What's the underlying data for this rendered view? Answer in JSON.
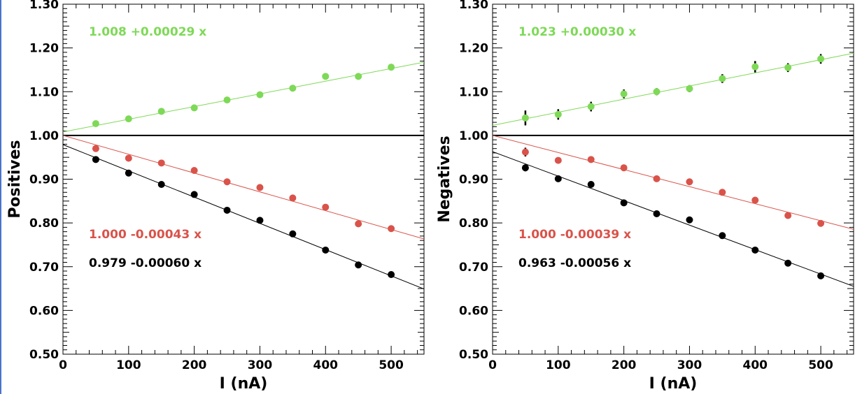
{
  "chart_data": [
    {
      "type": "scatter",
      "title": "",
      "xlabel": "I (nA)",
      "ylabel": "Positives",
      "xlim": [
        0,
        550
      ],
      "ylim": [
        0.5,
        1.3
      ],
      "x_ticks": [
        "0",
        "100",
        "200",
        "300",
        "400",
        "500"
      ],
      "y_ticks": [
        "0.50",
        "0.60",
        "0.70",
        "0.80",
        "0.90",
        "1.00",
        "1.10",
        "1.20",
        "1.30"
      ],
      "reference_line": 1.0,
      "grid": false,
      "series": [
        {
          "color": "#7ed957",
          "x": [
            50,
            100,
            150,
            200,
            250,
            300,
            350,
            400,
            450,
            500
          ],
          "y": [
            1.027,
            1.038,
            1.055,
            1.063,
            1.081,
            1.093,
            1.108,
            1.135,
            1.135,
            1.156
          ],
          "yerr": [
            0,
            0,
            0,
            0,
            0,
            0,
            0,
            0,
            0,
            0
          ],
          "fit": {
            "intercept": 1.008,
            "slope": 0.00029,
            "label": "1.008 +0.00029 x"
          }
        },
        {
          "color": "#d9534a",
          "x": [
            50,
            100,
            150,
            200,
            250,
            300,
            350,
            400,
            450,
            500
          ],
          "y": [
            0.97,
            0.948,
            0.937,
            0.92,
            0.894,
            0.881,
            0.857,
            0.836,
            0.798,
            0.787
          ],
          "yerr": [
            0,
            0,
            0,
            0,
            0,
            0,
            0,
            0,
            0,
            0
          ],
          "fit": {
            "intercept": 1.0,
            "slope": -0.00043,
            "label": "1.000 -0.00043 x"
          }
        },
        {
          "color": "#000000",
          "x": [
            50,
            100,
            150,
            200,
            250,
            300,
            350,
            400,
            450,
            500
          ],
          "y": [
            0.945,
            0.914,
            0.888,
            0.865,
            0.829,
            0.806,
            0.775,
            0.738,
            0.704,
            0.682
          ],
          "yerr": [
            0,
            0,
            0,
            0,
            0,
            0,
            0,
            0,
            0,
            0
          ],
          "fit": {
            "intercept": 0.979,
            "slope": -0.0006,
            "label": "0.979 -0.00060 x"
          }
        }
      ]
    },
    {
      "type": "scatter",
      "title": "",
      "xlabel": "I (nA)",
      "ylabel": "Negatives",
      "xlim": [
        0,
        550
      ],
      "ylim": [
        0.5,
        1.3
      ],
      "x_ticks": [
        "0",
        "100",
        "200",
        "300",
        "400",
        "500"
      ],
      "y_ticks": [
        "0.50",
        "0.60",
        "0.70",
        "0.80",
        "0.90",
        "1.00",
        "1.10",
        "1.20",
        "1.30"
      ],
      "reference_line": 1.0,
      "grid": false,
      "series": [
        {
          "color": "#7ed957",
          "x": [
            50,
            100,
            150,
            200,
            250,
            300,
            350,
            400,
            450,
            500
          ],
          "y": [
            1.04,
            1.048,
            1.066,
            1.095,
            1.1,
            1.107,
            1.13,
            1.157,
            1.155,
            1.175
          ],
          "yerr": [
            0.017,
            0.012,
            0.011,
            0.01,
            0.008,
            0.008,
            0.01,
            0.013,
            0.01,
            0.011
          ],
          "fit": {
            "intercept": 1.023,
            "slope": 0.0003,
            "label": "1.023 +0.00030 x"
          }
        },
        {
          "color": "#d9534a",
          "x": [
            50,
            100,
            150,
            200,
            250,
            300,
            350,
            400,
            450,
            500
          ],
          "y": [
            0.962,
            0.943,
            0.945,
            0.926,
            0.901,
            0.894,
            0.87,
            0.852,
            0.817,
            0.799
          ],
          "yerr": [
            0.01,
            0.007,
            0,
            0,
            0,
            0,
            0,
            0,
            0,
            0
          ],
          "fit": {
            "intercept": 1.0,
            "slope": -0.00039,
            "label": "1.000 -0.00039 x"
          }
        },
        {
          "color": "#000000",
          "x": [
            50,
            100,
            150,
            200,
            250,
            300,
            350,
            400,
            450,
            500
          ],
          "y": [
            0.926,
            0.901,
            0.888,
            0.846,
            0.821,
            0.807,
            0.771,
            0.738,
            0.708,
            0.679
          ],
          "yerr": [
            0.008,
            0,
            0,
            0,
            0,
            0,
            0,
            0,
            0,
            0
          ],
          "fit": {
            "intercept": 0.963,
            "slope": -0.00056,
            "label": "0.963 -0.00056 x"
          }
        }
      ]
    }
  ]
}
